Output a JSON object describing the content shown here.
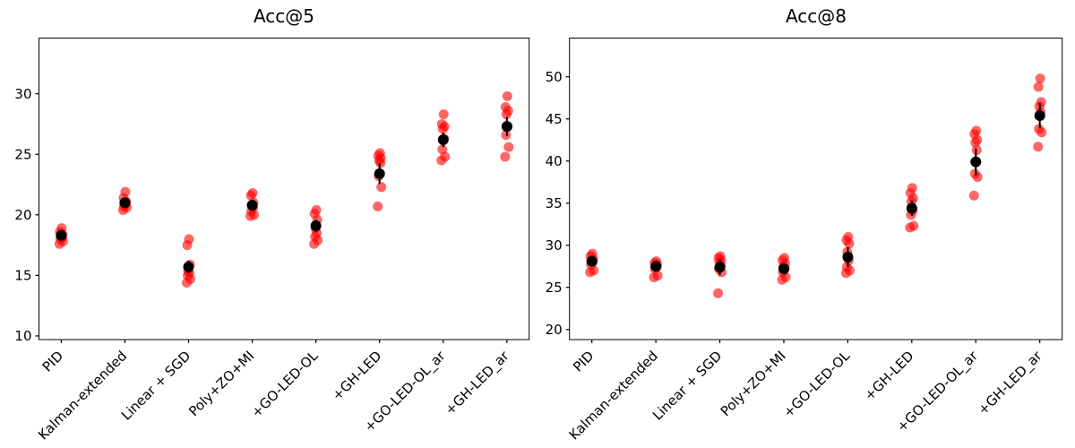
{
  "figure": {
    "background": "#ffffff"
  },
  "chart_data": [
    {
      "type": "scatter",
      "title": "Acc@5",
      "xlabel": "",
      "ylabel": "",
      "grid": false,
      "legend": "none",
      "categories": [
        "PID",
        "Kalman-extended",
        "Linear + SGD",
        "Poly+ZO+MI",
        "+GO-LED-OL",
        "+GH-LED",
        "+GO-LED-OL_ar",
        "+GH-LED_ar"
      ],
      "yticks": [
        10,
        15,
        20,
        25,
        30
      ],
      "ylim": [
        9.7,
        34.6
      ],
      "point_color": "#ff0000",
      "point_opacity": 0.6,
      "mean_color": "#000000",
      "series": [
        {
          "name": "individual-runs",
          "points": [
            [
              18.9,
              18.6,
              18.4,
              18.3,
              18.1,
              18.0,
              17.8,
              17.6
            ],
            [
              21.9,
              21.4,
              21.1,
              21.0,
              20.9,
              20.7,
              20.6,
              20.4
            ],
            [
              18.0,
              17.5,
              15.9,
              15.4,
              15.2,
              15.0,
              14.7,
              14.4
            ],
            [
              21.8,
              21.6,
              21.0,
              20.8,
              20.6,
              20.3,
              20.0,
              19.9
            ],
            [
              20.4,
              20.1,
              19.6,
              18.9,
              18.5,
              18.2,
              17.9,
              17.6
            ],
            [
              25.1,
              24.9,
              24.7,
              24.5,
              24.3,
              23.2,
              22.3,
              20.7
            ],
            [
              28.3,
              27.5,
              27.3,
              27.1,
              26.3,
              25.4,
              24.8,
              24.5
            ],
            [
              29.8,
              28.9,
              28.6,
              28.3,
              27.3,
              26.6,
              25.6,
              24.8
            ]
          ]
        },
        {
          "name": "mean-with-error",
          "means": [
            18.3,
            21.0,
            15.7,
            20.8,
            19.1,
            23.4,
            26.2,
            27.3
          ],
          "errors": [
            0.2,
            0.25,
            0.5,
            0.3,
            0.5,
            0.85,
            0.6,
            0.8
          ]
        }
      ]
    },
    {
      "type": "scatter",
      "title": "Acc@8",
      "xlabel": "",
      "ylabel": "",
      "grid": false,
      "legend": "none",
      "categories": [
        "PID",
        "Kalman-extended",
        "Linear + SGD",
        "Poly+ZO+MI",
        "+GO-LED-OL",
        "+GH-LED",
        "+GO-LED-OL_ar",
        "+GH-LED_ar"
      ],
      "yticks": [
        20,
        25,
        30,
        35,
        40,
        45,
        50
      ],
      "ylim": [
        18.8,
        54.6
      ],
      "point_color": "#ff0000",
      "point_opacity": 0.6,
      "mean_color": "#000000",
      "series": [
        {
          "name": "individual-runs",
          "points": [
            [
              29.0,
              28.7,
              28.4,
              28.2,
              28.0,
              27.7,
              27.0,
              26.8
            ],
            [
              28.1,
              27.9,
              27.7,
              27.5,
              27.4,
              27.2,
              26.4,
              26.2
            ],
            [
              28.7,
              28.5,
              28.2,
              28.0,
              27.6,
              27.2,
              26.8,
              24.3
            ],
            [
              28.5,
              28.2,
              27.8,
              27.5,
              27.2,
              26.8,
              26.2,
              25.9
            ],
            [
              31.0,
              30.6,
              30.2,
              29.2,
              28.2,
              27.4,
              27.0,
              26.7
            ],
            [
              36.8,
              36.2,
              35.6,
              35.2,
              34.1,
              33.6,
              32.3,
              32.1
            ],
            [
              43.6,
              43.2,
              42.5,
              42.2,
              41.3,
              38.5,
              38.1,
              35.9
            ],
            [
              49.8,
              48.8,
              47.0,
              46.5,
              45.8,
              43.8,
              43.4,
              41.7
            ]
          ]
        },
        {
          "name": "mean-with-error",
          "means": [
            28.1,
            27.5,
            27.4,
            27.2,
            28.6,
            34.4,
            39.9,
            45.4
          ],
          "errors": [
            0.3,
            0.25,
            0.95,
            0.5,
            1.2,
            0.9,
            1.6,
            1.5
          ]
        }
      ]
    }
  ]
}
